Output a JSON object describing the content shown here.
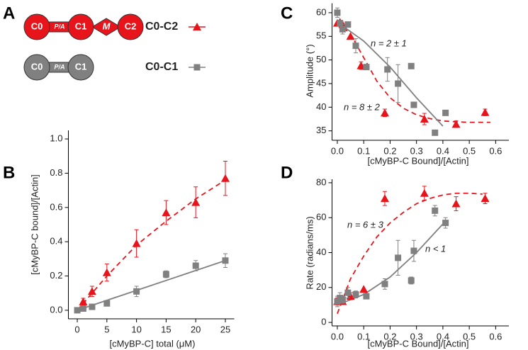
{
  "diagram": {
    "panel_label": "A",
    "rows": [
      {
        "nodes": [
          "C0",
          "P/A",
          "C1",
          "M",
          "C2"
        ]
      },
      {
        "nodes": [
          "C0",
          "P/A",
          "C1"
        ]
      }
    ]
  },
  "chart_data": [
    {
      "type": "scatter",
      "panel_label": "B",
      "xlabel": "[cMyBP-C] total (μM)",
      "ylabel": "[cMyBP-C bound]/[Actin]",
      "xlim": [
        -1.5,
        26.5
      ],
      "ylim": [
        -0.05,
        1.05
      ],
      "xticks": [
        0,
        5,
        10,
        15,
        20,
        25
      ],
      "yticks": [
        {
          "value": 0,
          "label": "0.0"
        },
        0.2,
        0.4,
        0.6,
        0.8,
        {
          "value": 1,
          "label": "1.0"
        }
      ],
      "series": [
        {
          "name": "C0-C2",
          "color": "#e8141b",
          "marker": "triangle",
          "x": [
            1,
            2.5,
            5,
            10,
            15,
            20,
            25
          ],
          "values": [
            0.05,
            0.11,
            0.22,
            0.39,
            0.57,
            0.63,
            0.77
          ],
          "errors": [
            0.02,
            0.03,
            0.05,
            0.08,
            0.07,
            0.09,
            0.1
          ]
        },
        {
          "name": "C0-C1",
          "color": "#808080",
          "marker": "square",
          "x": [
            0,
            1,
            2.5,
            5,
            10,
            15,
            20,
            25
          ],
          "values": [
            0.0,
            0.01,
            0.02,
            0.04,
            0.11,
            0.21,
            0.26,
            0.29
          ],
          "errors": [
            0.01,
            0.01,
            0.01,
            0.01,
            0.03,
            0.02,
            0.03,
            0.04
          ]
        }
      ],
      "fit_lines": [
        {
          "color": "#e8141b",
          "dash": true,
          "x": [
            0,
            5,
            10,
            15,
            20,
            25
          ],
          "values": [
            0,
            0.2,
            0.38,
            0.52,
            0.65,
            0.76
          ]
        },
        {
          "color": "#808080",
          "dash": false,
          "x": [
            0,
            25
          ],
          "values": [
            0,
            0.29
          ]
        }
      ],
      "annotations": []
    },
    {
      "type": "scatter",
      "panel_label": "C",
      "xlabel": "[cMyBP-C Bound]/[Actin]",
      "ylabel": "Amplitude (°)",
      "xlim": [
        -0.02,
        0.65
      ],
      "ylim": [
        33,
        62
      ],
      "xticks": [
        {
          "value": 0,
          "label": "0.0"
        },
        0.1,
        0.2,
        0.3,
        0.4,
        0.5,
        0.6
      ],
      "yticks": [
        35,
        40,
        45,
        50,
        55,
        60
      ],
      "series": [
        {
          "color": "#e8141b",
          "marker": "triangle",
          "x": [
            0,
            0.01,
            0.02,
            0.05,
            0.09,
            0.18,
            0.33,
            0.45,
            0.56
          ],
          "values": [
            57.8,
            58,
            57.5,
            55,
            48.8,
            38.8,
            37.5,
            36.4,
            38.9
          ],
          "errors": [
            null,
            null,
            null,
            null,
            0.8,
            0.8,
            1.2,
            0.7,
            0.7
          ]
        },
        {
          "color": "#808080",
          "marker": "square",
          "x": [
            0,
            0.01,
            0.02,
            0.04,
            0.07,
            0.11,
            0.19,
            0.23,
            0.28,
            0.29,
            0.37,
            0.41
          ],
          "values": [
            60,
            57.8,
            56.5,
            57.5,
            53,
            48.5,
            48,
            45,
            48.7,
            40.5,
            34.6,
            38.8
          ],
          "errors": [
            1,
            null,
            1,
            null,
            1.5,
            null,
            2.5,
            4,
            null,
            null,
            null,
            null
          ]
        }
      ],
      "fit_lines": [
        {
          "color": "#e8141b",
          "dash": true,
          "x": [
            0,
            0.05,
            0.1,
            0.15,
            0.2,
            0.25,
            0.3,
            0.35,
            0.4,
            0.45,
            0.5,
            0.55,
            0.58
          ],
          "values": [
            58,
            55.5,
            50.5,
            45.5,
            42,
            39.8,
            38.4,
            37.6,
            37.1,
            36.9,
            36.8,
            36.8,
            36.8
          ]
        },
        {
          "color": "#808080",
          "dash": false,
          "x": [
            0,
            0.1,
            0.2,
            0.3,
            0.4
          ],
          "values": [
            58,
            54,
            48.5,
            42,
            36
          ]
        }
      ],
      "annotations": [
        {
          "text": "n = 2 ± 1",
          "color": "#808080"
        },
        {
          "text": "n = 8 ± 2",
          "color": "#e8141b"
        }
      ]
    },
    {
      "type": "scatter",
      "panel_label": "D",
      "xlabel": "[cMyBP-C Bound]/[Actin]",
      "ylabel": "Rate (radians/ms)",
      "xlim": [
        -0.02,
        0.65
      ],
      "ylim": [
        -2,
        82
      ],
      "xticks": [
        {
          "value": 0,
          "label": "0.0"
        },
        0.1,
        0.2,
        0.3,
        0.4,
        0.5,
        0.6
      ],
      "yticks": [
        0,
        20,
        40,
        60,
        80
      ],
      "series": [
        {
          "color": "#e8141b",
          "marker": "triangle",
          "x": [
            0,
            0.01,
            0.02,
            0.05,
            0.1,
            0.18,
            0.33,
            0.45,
            0.56
          ],
          "values": [
            12,
            13,
            12,
            15,
            19,
            71,
            74,
            68,
            71
          ],
          "errors": [
            2,
            2,
            null,
            2,
            null,
            4,
            4,
            4,
            3
          ]
        },
        {
          "color": "#808080",
          "marker": "square",
          "x": [
            0,
            0.01,
            0.02,
            0.04,
            0.07,
            0.11,
            0.18,
            0.23,
            0.28,
            0.29,
            0.37,
            0.41
          ],
          "values": [
            12,
            14,
            13,
            17,
            16,
            15,
            22,
            37,
            24,
            41,
            64,
            57
          ],
          "errors": [
            3,
            3,
            2,
            3,
            2,
            null,
            3,
            10,
            2,
            6,
            3,
            3
          ]
        }
      ],
      "fit_lines": [
        {
          "color": "#e8141b",
          "dash": true,
          "x": [
            0,
            0.05,
            0.1,
            0.15,
            0.2,
            0.25,
            0.3,
            0.35,
            0.4,
            0.45,
            0.5,
            0.55
          ],
          "values": [
            5,
            25,
            38,
            49,
            57,
            63,
            68,
            71,
            73,
            74,
            74,
            73.5
          ]
        },
        {
          "color": "#808080",
          "dash": false,
          "x": [
            0,
            0.1,
            0.2,
            0.3,
            0.41
          ],
          "values": [
            10,
            16,
            26,
            40,
            58
          ]
        }
      ],
      "annotations": [
        {
          "text": "n = 6 ± 3",
          "color": "#e8141b"
        },
        {
          "text": "n < 1",
          "color": "#808080"
        }
      ]
    }
  ]
}
